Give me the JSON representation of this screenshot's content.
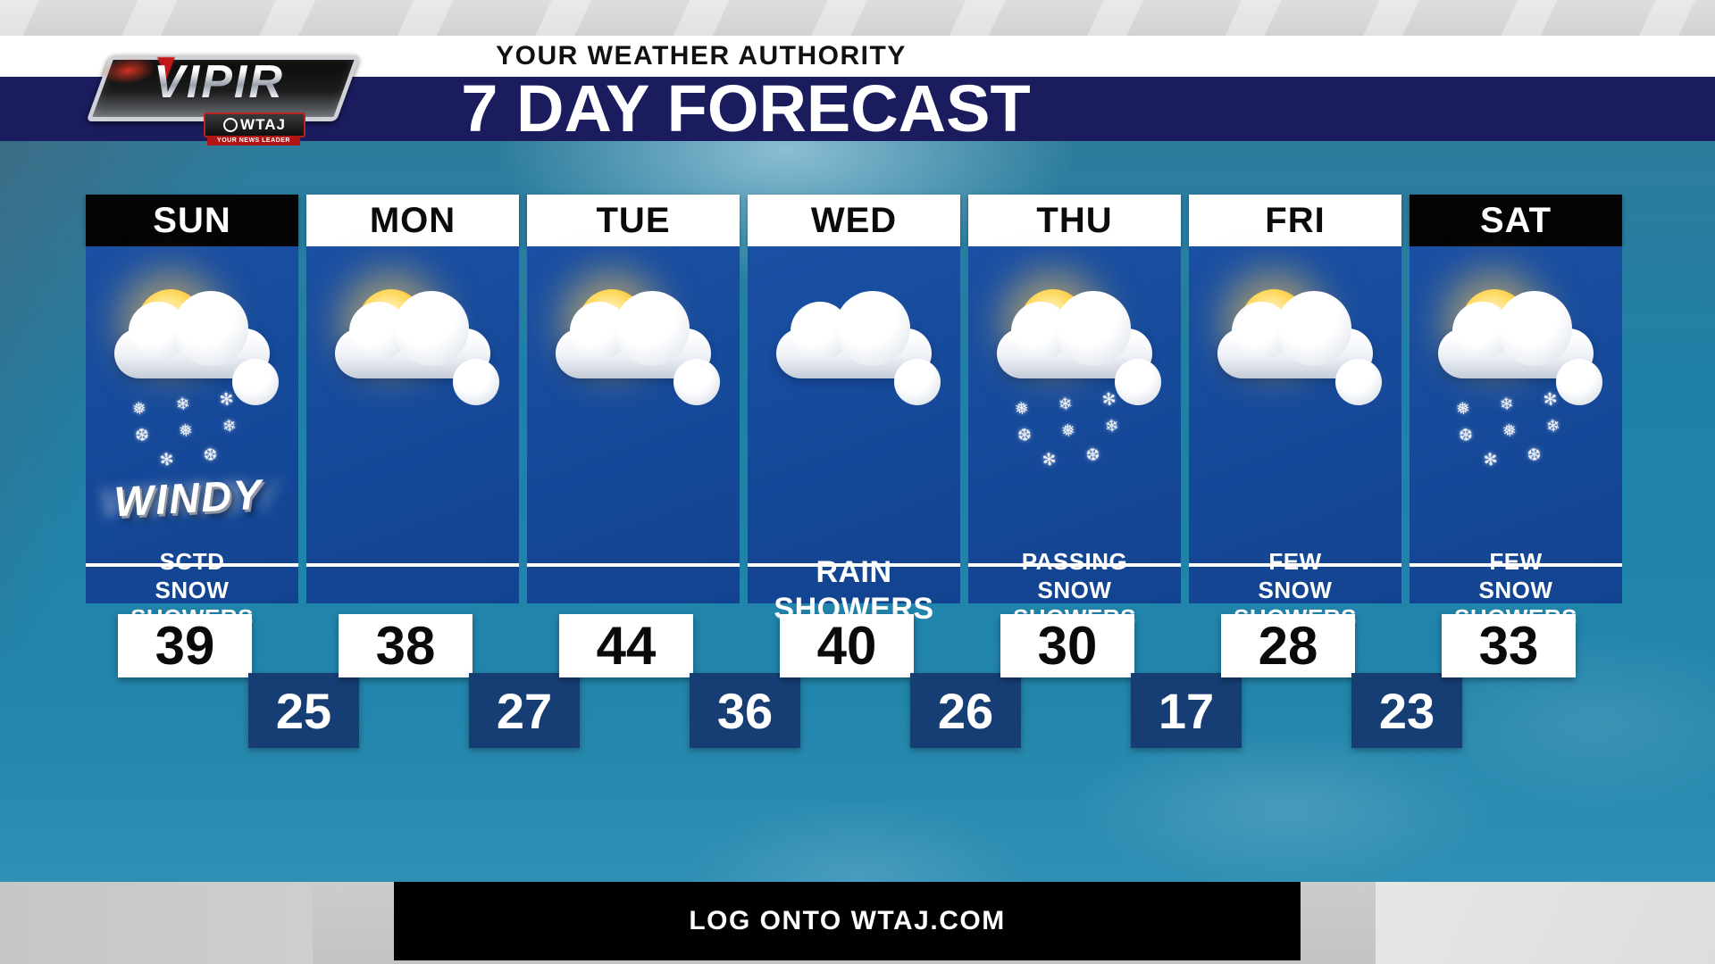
{
  "topbar": {
    "authority": "YOUR WEATHER AUTHORITY"
  },
  "titlebar": {
    "title": "7 DAY FORECAST",
    "logo": {
      "brand": "VIPIR",
      "station": "WTAJ",
      "tagline": "YOUR NEWS LEADER"
    }
  },
  "footer": {
    "cta": "LOG ONTO WTAJ.COM"
  },
  "colors": {
    "navy_band": "#1a1c5e",
    "column_blue": "#164a9a",
    "low_box_navy": "#173e74",
    "sky_teal": "#1f81a8",
    "today_header_black": "#040404",
    "header_white": "#ffffff"
  },
  "days": [
    {
      "label": "SUN",
      "header_variant": "dark",
      "icon": "sun-cloud-snow",
      "badge": "WINDY",
      "condition": "SCTD\nSNOW\nSHOWERS",
      "high": 39,
      "low": 25
    },
    {
      "label": "MON",
      "header_variant": "light",
      "icon": "sun-cloud",
      "high": 38,
      "low": 27
    },
    {
      "label": "TUE",
      "header_variant": "light",
      "icon": "sun-cloud",
      "high": 44,
      "low": 36
    },
    {
      "label": "WED",
      "header_variant": "light",
      "icon": "cloudy",
      "condition": "RAIN\nSHOWERS",
      "high": 40,
      "low": 26
    },
    {
      "label": "THU",
      "header_variant": "light",
      "icon": "sun-cloud-snow",
      "condition": "PASSING\nSNOW\nSHOWERS",
      "high": 30,
      "low": 17
    },
    {
      "label": "FRI",
      "header_variant": "light",
      "icon": "sun-cloud",
      "condition": "FEW\nSNOW\nSHOWERS",
      "high": 28,
      "low": 23
    },
    {
      "label": "SAT",
      "header_variant": "dark",
      "icon": "sun-cloud-snow",
      "condition": "FEW\nSNOW\nSHOWERS",
      "high": 33
    }
  ]
}
